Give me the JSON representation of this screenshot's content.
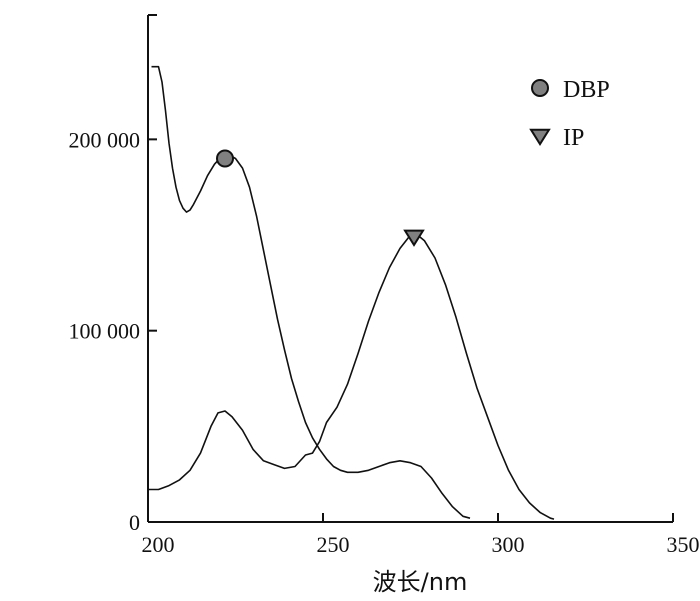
{
  "chart_data": {
    "type": "line",
    "title": "",
    "xlabel": "波长/nm",
    "ylabel": "",
    "xlim": [
      200,
      350
    ],
    "ylim": [
      0,
      265000
    ],
    "xticks": [
      200,
      250,
      300,
      350
    ],
    "xtick_labels": [
      "200",
      "250",
      "300",
      "350"
    ],
    "yticks": [
      0,
      100000,
      200000
    ],
    "ytick_labels": [
      "0",
      "100 000",
      "200 000"
    ],
    "grid": false,
    "legend_position": "top-right",
    "colors": {
      "line": "#111111",
      "marker_fill": "#808080"
    },
    "series": [
      {
        "name": "DBP",
        "marker": "circle",
        "marker_point": [
          222,
          190000
        ],
        "x": [
          201,
          203,
          204,
          205,
          206,
          207,
          208,
          209,
          210,
          211,
          212,
          213,
          215,
          217,
          219,
          221,
          223,
          225,
          227,
          229,
          231,
          233,
          235,
          237,
          239,
          241,
          243,
          245,
          247,
          249,
          251,
          253,
          255,
          257,
          260,
          263,
          266,
          269,
          272,
          275,
          278,
          281,
          284,
          287,
          290,
          292
        ],
        "values": [
          238000,
          238000,
          230000,
          215000,
          198000,
          185000,
          175000,
          168000,
          164000,
          162000,
          163000,
          166000,
          173000,
          181000,
          187000,
          191000,
          192000,
          190000,
          185000,
          175000,
          160000,
          142000,
          124000,
          106000,
          90000,
          75000,
          63000,
          52000,
          44000,
          38000,
          33000,
          29000,
          27000,
          26000,
          26000,
          27000,
          29000,
          31000,
          32000,
          31000,
          29000,
          23000,
          15000,
          8000,
          3000,
          2000
        ]
      },
      {
        "name": "IP",
        "marker": "triangle-down",
        "marker_point": [
          276,
          149000
        ],
        "x": [
          200,
          203,
          206,
          209,
          212,
          215,
          218,
          220,
          222,
          224,
          227,
          230,
          233,
          236,
          239,
          242,
          245,
          247,
          249,
          251,
          254,
          257,
          260,
          263,
          266,
          269,
          272,
          275,
          277,
          279,
          282,
          285,
          288,
          291,
          294,
          297,
          300,
          303,
          306,
          309,
          312,
          315,
          316
        ],
        "values": [
          17000,
          17000,
          19000,
          22000,
          27000,
          36000,
          50000,
          57000,
          58000,
          55000,
          48000,
          38000,
          32000,
          30000,
          28000,
          29000,
          35000,
          36000,
          42000,
          52000,
          60000,
          72000,
          88000,
          105000,
          120000,
          133000,
          143000,
          150000,
          150000,
          147000,
          138000,
          124000,
          107000,
          88000,
          70000,
          55000,
          40000,
          27000,
          17000,
          10000,
          5000,
          2000,
          1500
        ]
      }
    ]
  }
}
